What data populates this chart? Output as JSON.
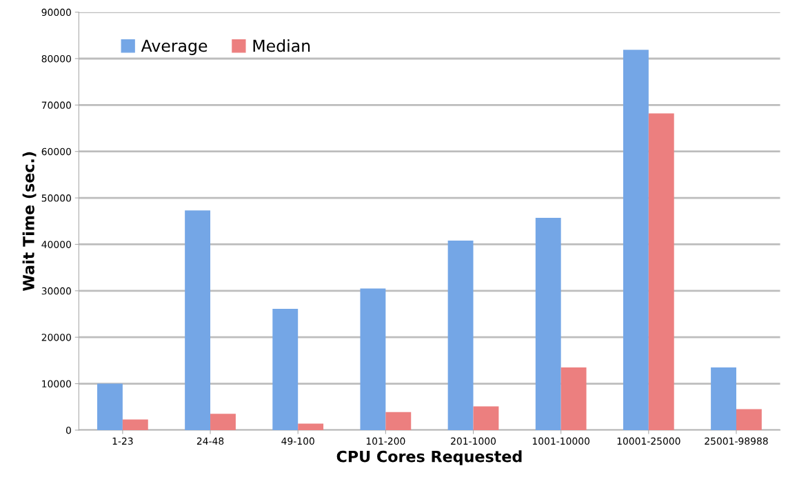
{
  "chart_data": {
    "type": "bar",
    "xlabel": "CPU Cores Requested",
    "ylabel": "Wait Time (sec.)",
    "categories": [
      "1-23",
      "24-48",
      "49-100",
      "101-200",
      "201-1000",
      "1001-10000",
      "10001-25000",
      "25001-98988"
    ],
    "series": [
      {
        "name": "Average",
        "color": "#74a6e6",
        "values": [
          10000,
          47300,
          26100,
          30500,
          40800,
          45700,
          81900,
          13500
        ]
      },
      {
        "name": "Median",
        "color": "#ec7f7f",
        "values": [
          2300,
          3500,
          1400,
          3900,
          5100,
          13500,
          68200,
          4500
        ]
      }
    ],
    "ylim": [
      0,
      90000
    ],
    "yticks": [
      0,
      10000,
      20000,
      30000,
      40000,
      50000,
      60000,
      70000,
      80000,
      90000
    ],
    "grid": "y",
    "legend": "top left"
  }
}
